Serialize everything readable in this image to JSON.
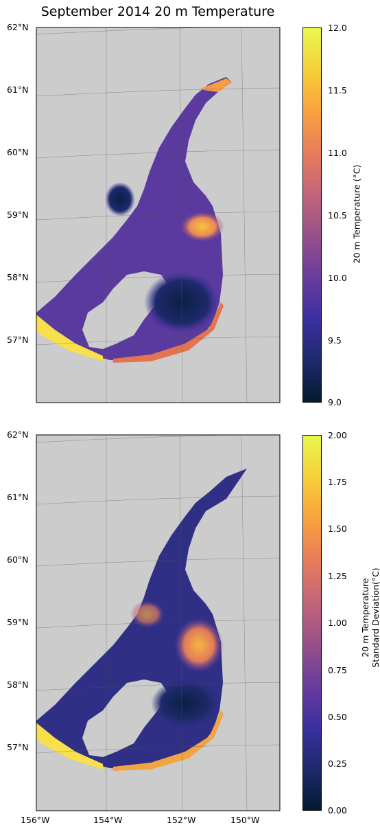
{
  "title": "September 2014 20 m Temperature",
  "lat_labels": [
    "62°N",
    "61°N",
    "60°N",
    "59°N",
    "58°N",
    "57°N"
  ],
  "lon_labels": [
    "156°W",
    "154°W",
    "152°W",
    "150°W"
  ],
  "colormap": [
    "#041a30",
    "#1d2a6b",
    "#3b2fa0",
    "#6a3c9e",
    "#985089",
    "#c2657a",
    "#e87c5c",
    "#f9a23d",
    "#f7cf3a",
    "#e8f84f"
  ],
  "land_color": "#cccccc",
  "panels": [
    {
      "colorbar_label_lines": [
        "20 m Temperature (°C)"
      ],
      "colorbar_range": [
        9.0,
        12.0
      ],
      "colorbar_ticks": [
        "12.0",
        "11.5",
        "11.0",
        "10.5",
        "10.0",
        "9.5",
        "9.0"
      ]
    },
    {
      "colorbar_label_lines": [
        "20 m Temperature",
        "Standard Deviation(°C)"
      ],
      "colorbar_range": [
        0.0,
        2.0
      ],
      "colorbar_ticks": [
        "2.00",
        "1.75",
        "1.50",
        "1.25",
        "1.00",
        "0.75",
        "0.50",
        "0.25",
        "0.00"
      ]
    }
  ]
}
